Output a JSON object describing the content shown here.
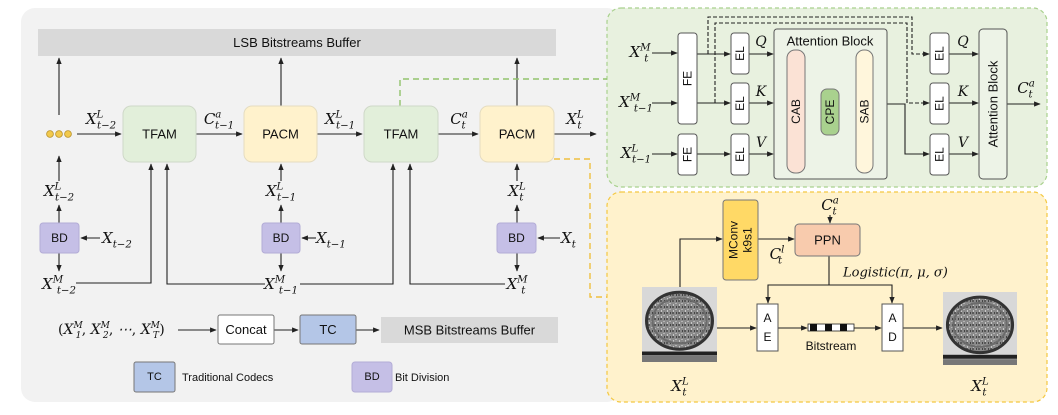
{
  "left_panel": {
    "lsb_buffer": "LSB Bitstreams Buffer",
    "msb_buffer": "MSB Bitstreams Buffer",
    "tfam": "TFAM",
    "pacm": "PACM",
    "bd": "BD",
    "concat": "Concat",
    "tc": "TC",
    "legend": [
      {
        "abbr": "TC",
        "label": "Traditional Codecs"
      },
      {
        "abbr": "BD",
        "label": "Bit Division"
      }
    ],
    "tuple": {
      "open": "(",
      "items": [
        {
          "base": "X",
          "sup": "M",
          "sub": "1"
        },
        {
          "base": "X",
          "sup": "M",
          "sub": "2"
        },
        {
          "base": "⋯",
          "sup": "",
          "sub": ""
        },
        {
          "base": "X",
          "sup": "M",
          "sub": "T"
        }
      ],
      "separator": ",",
      "close": ")"
    }
  },
  "math": {
    "row_x_tm2_L": {
      "base": "X",
      "sup": "L",
      "sub": "t−2"
    },
    "row_c_tm1_a": {
      "base": "C",
      "sup": "a",
      "sub": "t−1"
    },
    "row_x_tm1_L": {
      "base": "X",
      "sup": "L",
      "sub": "t−1"
    },
    "row_c_t_a": {
      "base": "C",
      "sup": "a",
      "sub": "t"
    },
    "row_x_t_L": {
      "base": "X",
      "sup": "L",
      "sub": "t"
    },
    "col1_x_L": {
      "base": "X",
      "sup": "L",
      "sub": "t−2"
    },
    "col1_x": {
      "base": "X",
      "sup": "",
      "sub": "t−2"
    },
    "col1_x_M": {
      "base": "X",
      "sup": "M",
      "sub": "t−2"
    },
    "col2_x_L": {
      "base": "X",
      "sup": "L",
      "sub": "t−1"
    },
    "col2_x": {
      "base": "X",
      "sup": "",
      "sub": "t−1"
    },
    "col2_x_M": {
      "base": "X",
      "sup": "M",
      "sub": "t−1"
    },
    "col3_x_L": {
      "base": "X",
      "sup": "L",
      "sub": "t"
    },
    "col3_x": {
      "base": "X",
      "sup": "",
      "sub": "t"
    },
    "col3_x_M": {
      "base": "X",
      "sup": "M",
      "sub": "t"
    },
    "att_in_x_t_M": {
      "base": "X",
      "sup": "M",
      "sub": "t"
    },
    "att_in_x_tm1_M": {
      "base": "X",
      "sup": "M",
      "sub": "t−1"
    },
    "att_in_x_tm1_L": {
      "base": "X",
      "sup": "L",
      "sub": "t−1"
    },
    "att_out_c_t_a": {
      "base": "C",
      "sup": "a",
      "sub": "t"
    },
    "ppn_in_c_t_a": {
      "base": "C",
      "sup": "a",
      "sub": "t"
    },
    "mconv_out_c_t_l": {
      "base": "C",
      "sup": "l",
      "sub": "t"
    },
    "input_image_x_t_L": {
      "base": "X",
      "sup": "L",
      "sub": "t"
    },
    "output_image_x_t_L": {
      "base": "X",
      "sup": "L",
      "sub": "t"
    }
  },
  "attention_panel": {
    "fe": "FE",
    "el": "EL",
    "q": "Q",
    "k": "K",
    "v": "V",
    "attention_block": "Attention Block",
    "cab": "CAB",
    "cpe": "CPE",
    "sab": "SAB"
  },
  "pacm_panel": {
    "mconv": "MConv",
    "k9s1": "k9s1",
    "ppn": "PPN",
    "logistic": "Logistic(π, μ, σ)",
    "ae": [
      "A",
      "E"
    ],
    "ad": [
      "A",
      "D"
    ],
    "bitstream": "Bitstream"
  },
  "colors": {
    "panel_gray": "#f2f2f2",
    "buffer_gray": "#d9d9d9",
    "tfam_green": "#e2efda",
    "pacm_yellow": "#fff2cc",
    "bd_purple": "#c5bfe6",
    "tc_blue": "#b4c6e7",
    "attention_bg": "#e8f1df",
    "attention_border": "#a9d18e",
    "pacm_bg": "#fff2cc",
    "pacm_border": "#f4c842",
    "cab": "#fbe2d5",
    "cpe": "#a9d18e",
    "sab": "#fff6dc",
    "mconv": "#ffd966",
    "ppn": "#f8cbad",
    "dots": "#f2c94c"
  }
}
